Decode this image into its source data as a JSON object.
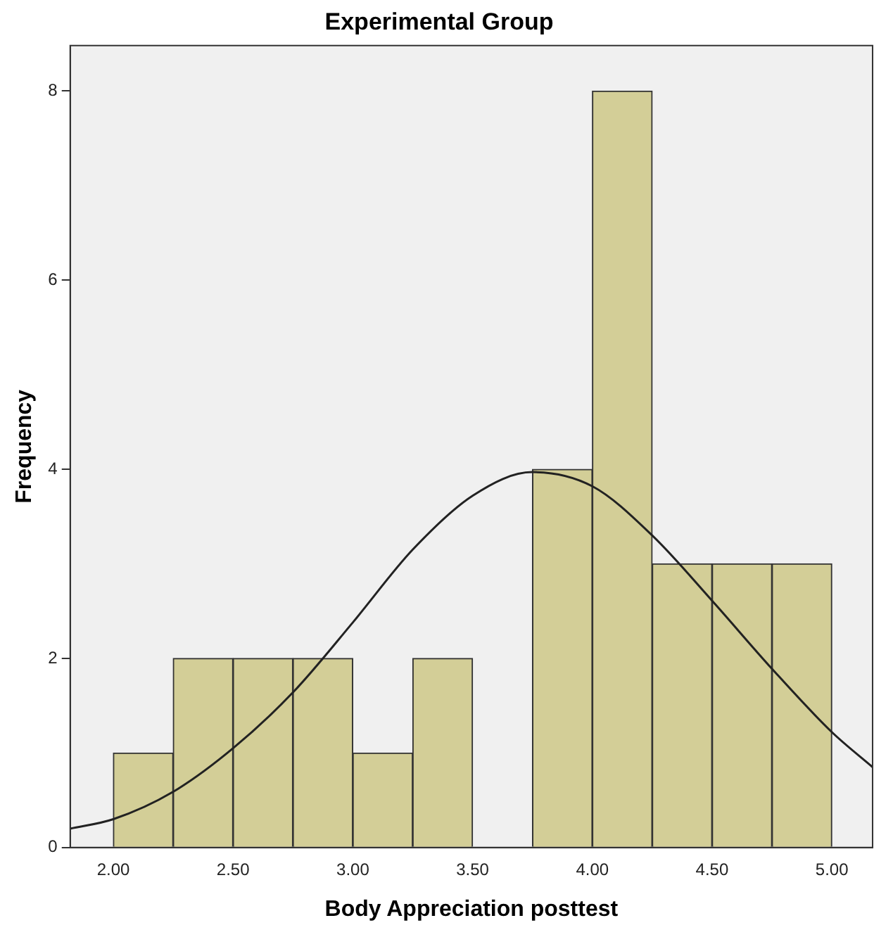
{
  "chart_data": {
    "type": "histogram",
    "title": "Experimental Group",
    "xlabel": "Body Appreciation posttest",
    "ylabel": "Frequency",
    "bins": [
      2.0,
      2.25,
      2.5,
      2.75,
      3.0,
      3.25,
      3.5,
      3.75,
      4.0,
      4.25,
      4.5,
      4.75,
      5.0
    ],
    "values": [
      1,
      2,
      2,
      2,
      1,
      2,
      0,
      4,
      8,
      3,
      3,
      3
    ],
    "color": "#d3ce97",
    "series": [
      {
        "type": "line",
        "color": "#222222",
        "x": [
          1.82,
          2.0,
          2.25,
          2.5,
          2.75,
          3.0,
          3.25,
          3.5,
          3.75,
          4.0,
          4.25,
          4.5,
          4.75,
          5.0,
          5.17
        ],
        "values": [
          0.2,
          0.3,
          0.59,
          1.05,
          1.64,
          2.38,
          3.15,
          3.72,
          3.97,
          3.82,
          3.3,
          2.61,
          1.89,
          1.22,
          0.85
        ]
      }
    ],
    "xlim": [
      1.82,
      5.17
    ],
    "xticks": [
      {
        "value": 2.0,
        "label": "2.00"
      },
      {
        "value": 2.5,
        "label": "2.50"
      },
      {
        "value": 3.0,
        "label": "3.00"
      },
      {
        "value": 3.5,
        "label": "3.50"
      },
      {
        "value": 4.0,
        "label": "4.00"
      },
      {
        "value": 4.5,
        "label": "4.50"
      },
      {
        "value": 5.0,
        "label": "5.00"
      }
    ],
    "ylim": [
      0,
      8.48
    ],
    "yticks": [
      0,
      2,
      4,
      6,
      8
    ],
    "grid": false,
    "legend": false,
    "marker": "none"
  }
}
